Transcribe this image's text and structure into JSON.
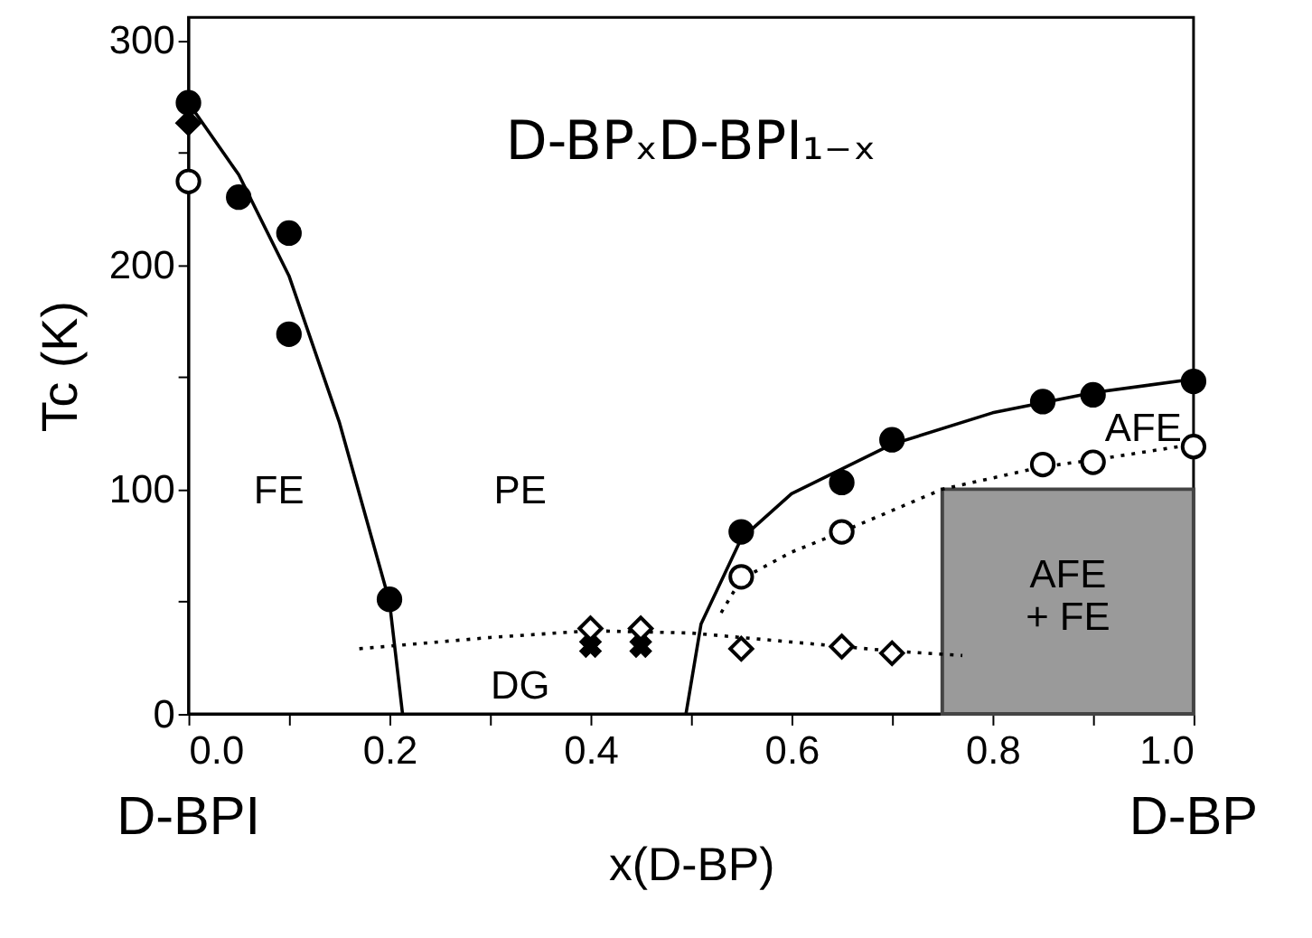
{
  "chart_data": {
    "type": "scatter",
    "xlabel": "x(D-BP)",
    "ylabel": "Tc (K)",
    "xlim": [
      0,
      1.0
    ],
    "ylim": [
      0,
      310
    ],
    "xticks": [
      {
        "value": 0,
        "label": "0.0"
      },
      {
        "value": 0.1,
        "label": null
      },
      {
        "value": 0.2,
        "label": "0.2"
      },
      {
        "value": 0.3,
        "label": null
      },
      {
        "value": 0.4,
        "label": "0.4"
      },
      {
        "value": 0.5,
        "label": null
      },
      {
        "value": 0.6,
        "label": "0.6"
      },
      {
        "value": 0.7,
        "label": null
      },
      {
        "value": 0.8,
        "label": "0.8"
      },
      {
        "value": 0.9,
        "label": null
      },
      {
        "value": 1.0,
        "label": "1.0"
      }
    ],
    "yticks": [
      0,
      {
        "value": 50,
        "label": null
      },
      100,
      {
        "value": 150,
        "label": null
      },
      200,
      {
        "value": 250,
        "label": null
      },
      300
    ],
    "grid": false,
    "series": [
      {
        "type": "area",
        "color": "#9a9a9a",
        "x": [
          0.75,
          1.0
        ],
        "values": [
          100,
          100
        ]
      },
      {
        "type": "line",
        "color": "#000000",
        "line_style": "solid",
        "marker": "none",
        "x": [
          0,
          0.05,
          0.1,
          0.15,
          0.2,
          0.213
        ],
        "values": [
          272,
          240,
          195,
          130,
          50,
          0
        ]
      },
      {
        "type": "line",
        "color": "#000000",
        "line_style": "solid",
        "marker": "none",
        "x": [
          0.495,
          0.51,
          0.55,
          0.6,
          0.7,
          0.8,
          0.9,
          1.0
        ],
        "values": [
          0,
          40,
          78,
          98,
          120,
          134,
          143,
          149
        ]
      },
      {
        "type": "line",
        "color": "#000000",
        "line_style": "dotted",
        "marker": "none",
        "x": [
          0.53,
          0.55,
          0.6,
          0.65,
          0.75,
          0.85,
          0.9,
          1.0
        ],
        "values": [
          45,
          60,
          72,
          81,
          100,
          110,
          113,
          120
        ]
      },
      {
        "type": "line",
        "color": "#000000",
        "line_style": "dotted",
        "marker": "none",
        "x": [
          0.17,
          0.3,
          0.4,
          0.5,
          0.6,
          0.7,
          0.77
        ],
        "values": [
          29,
          34,
          37,
          36,
          32,
          28,
          26
        ]
      },
      {
        "color": "#000000",
        "marker": "circle",
        "x": [
          0,
          0.05,
          0.1,
          0.1,
          0.2,
          0.55,
          0.65,
          0.7,
          0.85,
          0.9,
          1.0
        ],
        "values": [
          272,
          230,
          214,
          169,
          51,
          81,
          103,
          122,
          139,
          142,
          148
        ]
      },
      {
        "color": "#000000",
        "marker": "diamond",
        "x": [
          0
        ],
        "values": [
          263
        ]
      },
      {
        "color": "#ffffff",
        "marker": "circle",
        "x": [
          0,
          0.55,
          0.65,
          0.85,
          0.9,
          1.0
        ],
        "values": [
          237,
          61,
          81,
          111,
          112,
          119
        ]
      },
      {
        "color": "#ffffff",
        "marker": "diamond",
        "x": [
          0.4,
          0.45,
          0.55,
          0.65,
          0.7
        ],
        "values": [
          38,
          38,
          29,
          30,
          27
        ]
      },
      {
        "color": "#000000",
        "marker": "cross",
        "x": [
          0.4,
          0.45
        ],
        "values": [
          30,
          30
        ]
      }
    ],
    "annotations": [
      "D-BPₓD-BPI₁₋ₓ",
      "FE",
      "PE",
      "DG",
      "AFE",
      "AFE\n+ FE",
      "D-BPI",
      "D-BP"
    ]
  }
}
